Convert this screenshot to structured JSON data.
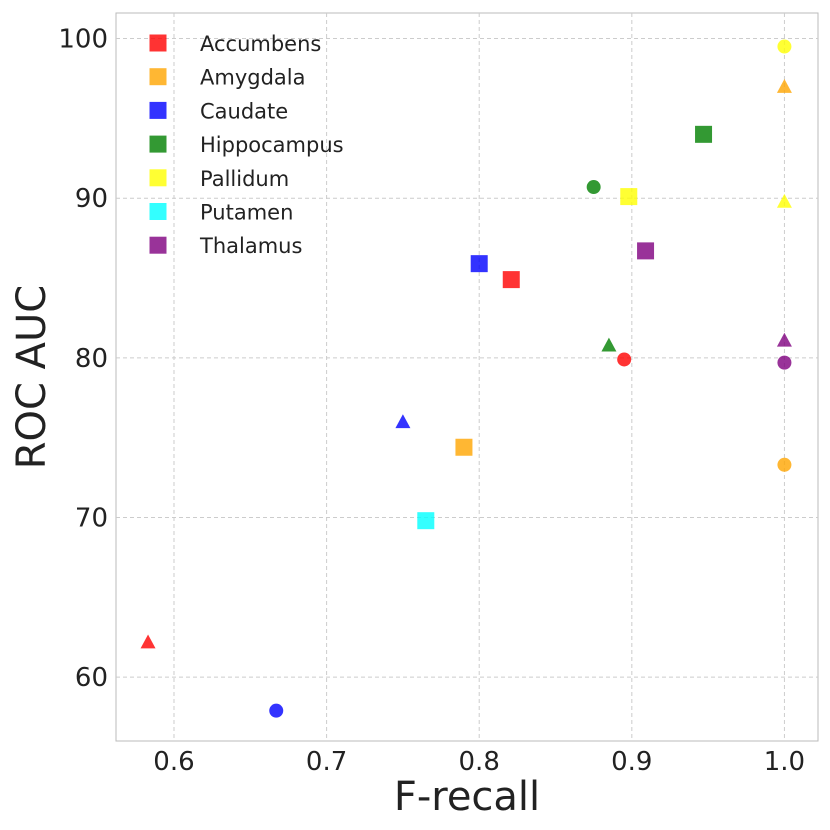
{
  "chart_data": {
    "type": "scatter",
    "title": "",
    "xlabel": "F-recall",
    "ylabel": "ROC AUC",
    "xlim": [
      0.562,
      1.022
    ],
    "ylim": [
      56,
      101.6
    ],
    "xticks": [
      0.6,
      0.7,
      0.8,
      0.9,
      1.0
    ],
    "xtick_labels": [
      "0.6",
      "0.7",
      "0.8",
      "0.9",
      "1.0"
    ],
    "yticks": [
      60,
      70,
      80,
      90,
      100
    ],
    "ytick_labels": [
      "60",
      "70",
      "80",
      "90",
      "100"
    ],
    "grid": true,
    "legend_position": "top-left",
    "series": [
      {
        "name": "Accumbens",
        "color": "#ff0000",
        "points": [
          {
            "x": 0.821,
            "y": 84.9,
            "marker": "square"
          },
          {
            "x": 0.895,
            "y": 79.9,
            "marker": "circle"
          },
          {
            "x": 0.583,
            "y": 62.2,
            "marker": "triangle"
          }
        ]
      },
      {
        "name": "Amygdala",
        "color": "#ffa500",
        "points": [
          {
            "x": 0.79,
            "y": 74.4,
            "marker": "square"
          },
          {
            "x": 1.0,
            "y": 73.3,
            "marker": "circle"
          },
          {
            "x": 1.0,
            "y": 97.0,
            "marker": "triangle"
          }
        ]
      },
      {
        "name": "Caudate",
        "color": "#0000ff",
        "points": [
          {
            "x": 0.8,
            "y": 85.9,
            "marker": "square"
          },
          {
            "x": 0.667,
            "y": 57.9,
            "marker": "circle"
          },
          {
            "x": 0.75,
            "y": 76.0,
            "marker": "triangle"
          }
        ]
      },
      {
        "name": "Hippocampus",
        "color": "#008000",
        "points": [
          {
            "x": 0.947,
            "y": 94.0,
            "marker": "square"
          },
          {
            "x": 0.875,
            "y": 90.7,
            "marker": "circle"
          },
          {
            "x": 0.885,
            "y": 80.8,
            "marker": "triangle"
          }
        ]
      },
      {
        "name": "Pallidum",
        "color": "#ffff00",
        "points": [
          {
            "x": 0.898,
            "y": 90.1,
            "marker": "square"
          },
          {
            "x": 1.0,
            "y": 99.5,
            "marker": "circle"
          },
          {
            "x": 1.0,
            "y": 89.8,
            "marker": "triangle"
          }
        ]
      },
      {
        "name": "Putamen",
        "color": "#00ffff",
        "points": [
          {
            "x": 0.765,
            "y": 69.8,
            "marker": "square"
          }
        ]
      },
      {
        "name": "Thalamus",
        "color": "#800080",
        "points": [
          {
            "x": 0.909,
            "y": 86.7,
            "marker": "square"
          },
          {
            "x": 1.0,
            "y": 79.7,
            "marker": "circle"
          },
          {
            "x": 1.0,
            "y": 81.1,
            "marker": "triangle"
          }
        ]
      }
    ]
  }
}
